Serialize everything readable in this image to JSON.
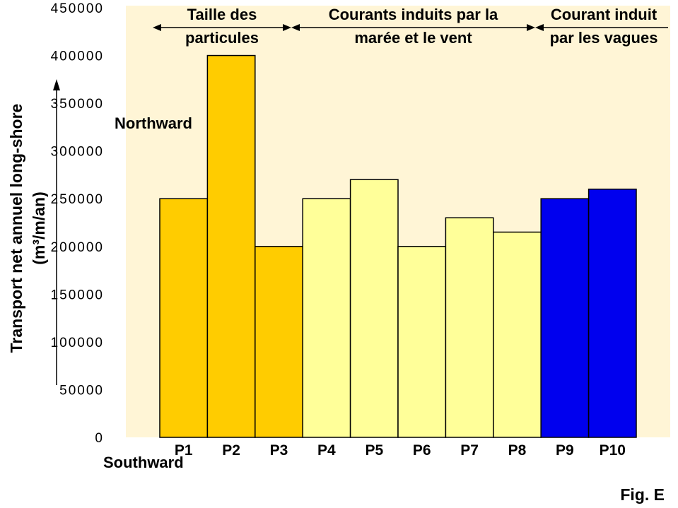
{
  "chart_data": {
    "type": "bar",
    "categories": [
      "P1",
      "P2",
      "P3",
      "P4",
      "P5",
      "P6",
      "P7",
      "P8",
      "P9",
      "P10"
    ],
    "values": [
      250000,
      400000,
      200000,
      250000,
      270000,
      200000,
      230000,
      215000,
      250000,
      260000
    ],
    "ylim": [
      0,
      450000
    ],
    "yticks": [
      0,
      50000,
      100000,
      150000,
      200000,
      250000,
      300000,
      350000,
      400000,
      450000
    ],
    "ylabel_line1": "Transport net annuel long-shore",
    "ylabel_line2": "(m³/m/an)",
    "grid": false,
    "groups": [
      {
        "label_lines": [
          "Taille des",
          "particules"
        ],
        "from": 0,
        "to": 2,
        "color": "#ffcc00"
      },
      {
        "label_lines": [
          "Courants induits par la",
          "marée et le vent"
        ],
        "from": 3,
        "to": 7,
        "color": "#ffff99"
      },
      {
        "label_lines": [
          "Courant induit",
          "par les vagues"
        ],
        "from": 8,
        "to": 9,
        "color": "#0000ee"
      }
    ],
    "direction_labels": {
      "up": "Northward",
      "down": "Southward"
    },
    "plot_background": "#fff5d6",
    "bar_outline": "#000000"
  },
  "figure_label": "Fig. E"
}
